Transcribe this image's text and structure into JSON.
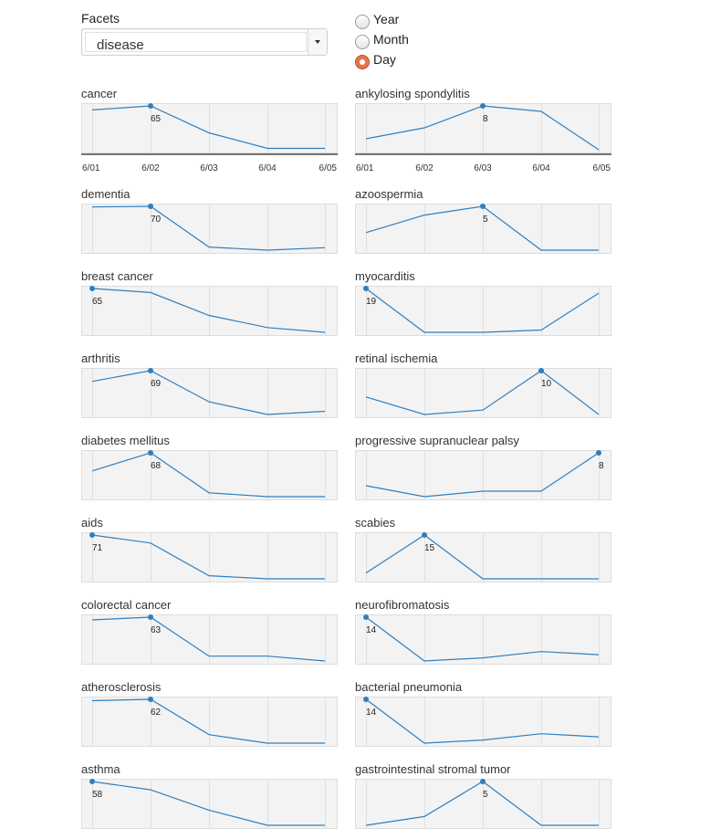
{
  "controls": {
    "facets_label": "Facets",
    "facet_value": "disease",
    "granularity_options": [
      {
        "label": "Year",
        "checked": false
      },
      {
        "label": "Month",
        "checked": false
      },
      {
        "label": "Day",
        "checked": true
      }
    ]
  },
  "colors": {
    "line": "#2f7fbf",
    "panel_bg": "#f3f3f3",
    "grid": "#e0e0e0",
    "accent_radio": "#e8734a"
  },
  "chart_data": {
    "type": "line",
    "dates": [
      "6/01",
      "6/02",
      "6/03",
      "6/04",
      "6/05"
    ],
    "panels": [
      {
        "name": "cancer",
        "values": [
          59,
          65,
          25,
          2,
          2
        ],
        "ylim": [
          0,
          65
        ],
        "peak_label": "65",
        "show_axis": true
      },
      {
        "name": "ankylosing spondylitis",
        "values": [
          2,
          4,
          8,
          7,
          0
        ],
        "ylim": [
          0,
          8
        ],
        "peak_label": "8",
        "show_axis": true
      },
      {
        "name": "dementia",
        "values": [
          69,
          70,
          5,
          0,
          4
        ],
        "ylim": [
          0,
          70
        ],
        "peak_label": "70"
      },
      {
        "name": "azoospermia",
        "values": [
          2,
          4,
          5,
          0,
          0
        ],
        "ylim": [
          0,
          5
        ],
        "peak_label": "5"
      },
      {
        "name": "breast cancer",
        "values": [
          65,
          59,
          25,
          7,
          0
        ],
        "ylim": [
          0,
          65
        ],
        "peak_label": "65"
      },
      {
        "name": "myocarditis",
        "values": [
          19,
          0,
          0,
          1,
          17
        ],
        "ylim": [
          0,
          19
        ],
        "peak_label": "19"
      },
      {
        "name": "arthritis",
        "values": [
          52,
          69,
          20,
          0,
          5
        ],
        "ylim": [
          0,
          69
        ],
        "peak_label": "69"
      },
      {
        "name": "retinal ischemia",
        "values": [
          4,
          0,
          1,
          10,
          0
        ],
        "ylim": [
          0,
          10
        ],
        "peak_label": "10"
      },
      {
        "name": "diabetes mellitus",
        "values": [
          40,
          68,
          6,
          0,
          0
        ],
        "ylim": [
          0,
          68
        ],
        "peak_label": "68"
      },
      {
        "name": "progressive supranuclear palsy",
        "values": [
          2,
          0,
          1,
          1,
          8
        ],
        "ylim": [
          0,
          8
        ],
        "peak_label": "8"
      },
      {
        "name": "aids",
        "values": [
          71,
          58,
          5,
          0,
          0
        ],
        "ylim": [
          0,
          71
        ],
        "peak_label": "71"
      },
      {
        "name": "scabies",
        "values": [
          2,
          15,
          0,
          0,
          0
        ],
        "ylim": [
          0,
          15
        ],
        "peak_label": "15"
      },
      {
        "name": "colorectal cancer",
        "values": [
          59,
          63,
          7,
          7,
          0
        ],
        "ylim": [
          0,
          63
        ],
        "peak_label": "63"
      },
      {
        "name": "neurofibromatosis",
        "values": [
          14,
          0,
          1,
          3,
          2
        ],
        "ylim": [
          0,
          14
        ],
        "peak_label": "14"
      },
      {
        "name": "atherosclerosis",
        "values": [
          60,
          62,
          12,
          0,
          0
        ],
        "ylim": [
          0,
          62
        ],
        "peak_label": "62"
      },
      {
        "name": "bacterial pneumonia",
        "values": [
          14,
          0,
          1,
          3,
          2
        ],
        "ylim": [
          0,
          14
        ],
        "peak_label": "14"
      },
      {
        "name": "asthma",
        "values": [
          58,
          47,
          20,
          0,
          0
        ],
        "ylim": [
          0,
          58
        ],
        "peak_label": "58"
      },
      {
        "name": "gastrointestinal stromal tumor",
        "values": [
          0,
          1,
          5,
          0,
          0
        ],
        "ylim": [
          0,
          5
        ],
        "peak_label": "5"
      }
    ]
  }
}
